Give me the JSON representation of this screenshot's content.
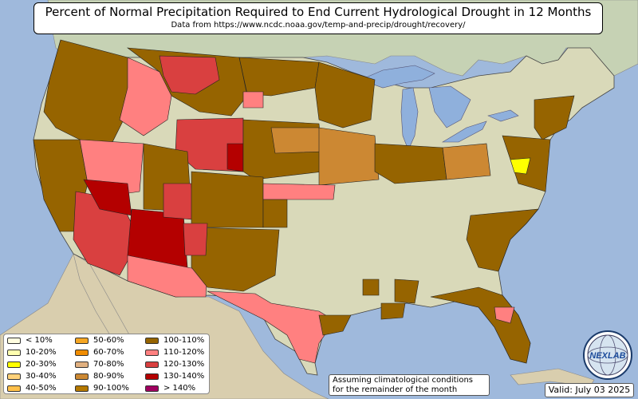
{
  "title": "Percent of Normal Precipitation Required to End Current Hydrological Drought in 12 Months",
  "subtitle": "Data from https://www.ncdc.noaa.gov/temp-and-precip/drought/recovery/",
  "legend": {
    "items": [
      {
        "label": "< 10%",
        "color": "#fffde0"
      },
      {
        "label": "10-20%",
        "color": "#ffffb0"
      },
      {
        "label": "20-30%",
        "color": "#ffff00"
      },
      {
        "label": "30-40%",
        "color": "#ffd27a"
      },
      {
        "label": "40-50%",
        "color": "#ffc04a"
      },
      {
        "label": "50-60%",
        "color": "#f5a623"
      },
      {
        "label": "60-70%",
        "color": "#f08c00"
      },
      {
        "label": "70-80%",
        "color": "#e0b080"
      },
      {
        "label": "80-90%",
        "color": "#cc8833"
      },
      {
        "label": "90-100%",
        "color": "#b47800"
      },
      {
        "label": "100-110%",
        "color": "#966400"
      },
      {
        "label": "110-120%",
        "color": "#ff8080"
      },
      {
        "label": "120-130%",
        "color": "#d94040"
      },
      {
        "label": "130-140%",
        "color": "#b40000"
      },
      {
        "label": "> 140%",
        "color": "#a00060"
      }
    ]
  },
  "note": {
    "line1": "Assuming climatological conditions",
    "line2": "for the remainder of the month"
  },
  "valid": "Valid: July 03 2025",
  "logo": {
    "text": "NEXLAB",
    "icon": "nexlab-globe-logo"
  },
  "colors": {
    "ocean": "#9fb9dc",
    "land": "#d8d8b8",
    "mexico": "#d9ceae",
    "canada": "#c6d2b4",
    "lakes": "#8fb0dc"
  }
}
